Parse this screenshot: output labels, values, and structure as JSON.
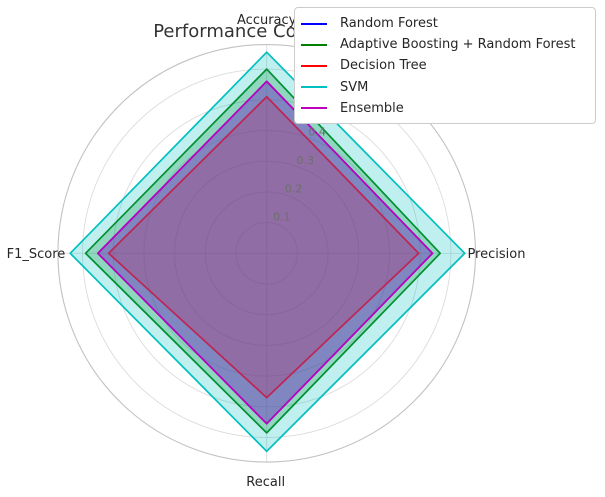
{
  "title": "Performance Comparison",
  "chart_data": {
    "type": "radar",
    "categories": [
      "Accuracy",
      "Precision",
      "Recall",
      "F1_Score"
    ],
    "series": [
      {
        "name": "Random Forest",
        "color": "#0000ff",
        "values": [
          0.56,
          0.54,
          0.555,
          0.55
        ]
      },
      {
        "name": "Adaptive Boosting + Random Forest",
        "color": "#008000",
        "values": [
          0.6,
          0.565,
          0.585,
          0.59
        ]
      },
      {
        "name": "Decision Tree",
        "color": "#ff0000",
        "values": [
          0.51,
          0.495,
          0.47,
          0.515
        ]
      },
      {
        "name": "SVM",
        "color": "#00bfbf",
        "values": [
          0.655,
          0.645,
          0.645,
          0.64
        ]
      },
      {
        "name": "Ensemble",
        "color": "#bf00bf",
        "values": [
          0.56,
          0.54,
          0.555,
          0.55
        ]
      }
    ],
    "radial_ticks": [
      0.1,
      0.2,
      0.3,
      0.4,
      0.5,
      0.6
    ],
    "r_max": 0.68,
    "fill_alpha": 0.25,
    "grid": true,
    "tick_label_angle_deg": 22.5,
    "legend_position": "upper right",
    "legend_items": [
      "Random Forest",
      "Adaptive Boosting + Random Forest",
      "Decision Tree",
      "SVM",
      "Ensemble"
    ]
  },
  "colors": {
    "background": "#ffffff",
    "gridline": "#dcdcdc",
    "spine": "#c2c2c2",
    "tick_label": "#6e6e6e",
    "axis_label": "#262626",
    "title": "#333333",
    "legend_border": "#cccccc"
  }
}
